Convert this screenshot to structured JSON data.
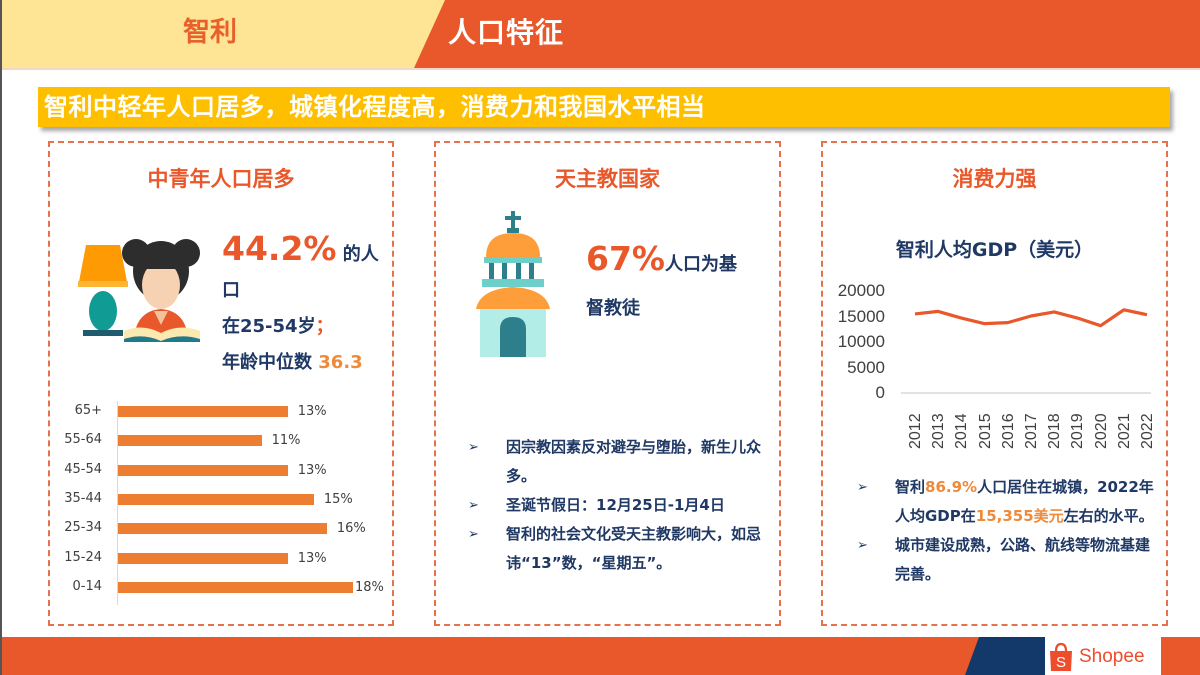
{
  "header": {
    "country": "智利",
    "topic": "人口特征"
  },
  "banner": {
    "headline": "智利中轻年人口居多，城镇化程度高，消费力和我国水平相当"
  },
  "cards": [
    {
      "title": "中青年人口居多",
      "illustration": "girl-reading-icon",
      "stat_value": "44.2%",
      "stat_suffix": " 的人",
      "stat_line2": "口",
      "stat_line3": "在25-54岁",
      "stat_line3_punct": "；",
      "median_label": "年龄中位数 ",
      "median_value": "36.3"
    },
    {
      "title": "天主教国家",
      "illustration": "church-icon",
      "stat_value": "67%",
      "stat_suffix": "人口为基",
      "stat_line2": "督教徒",
      "bullets": [
        "因宗教因素反对避孕与堕胎，新生儿众多。",
        "圣诞节假日：12月25日-1月4日",
        "智利的社会文化受天主教影响大，如忌讳“13”数，“星期五”。"
      ]
    },
    {
      "title": "消费力强",
      "chart_title": "智利人均GDP（美元）",
      "bullets": [
        {
          "parts": [
            {
              "text": "智利",
              "hl": false
            },
            {
              "text": "86.9%",
              "hl": true
            },
            {
              "text": "人口居住在城镇，2022年人均GDP在",
              "hl": false
            },
            {
              "text": "15,355美元",
              "hl": true
            },
            {
              "text": "左右的水平。",
              "hl": false
            }
          ]
        },
        {
          "parts": [
            {
              "text": "城市建设成熟，公路、航线等物流基建完善。",
              "hl": false
            }
          ]
        }
      ]
    }
  ],
  "chart_data": [
    {
      "type": "bar",
      "orientation": "horizontal",
      "title": "",
      "categories": [
        "65+",
        "55-64",
        "45-54",
        "35-44",
        "25-34",
        "15-24",
        "0-14"
      ],
      "values": [
        13,
        11,
        13,
        15,
        16,
        13,
        18
      ],
      "data_labels": [
        "13%",
        "11%",
        "13%",
        "15%",
        "16%",
        "13%",
        "18%"
      ],
      "unit": "%",
      "color": "#ed7d31",
      "grid": false,
      "legend": "none"
    },
    {
      "type": "line",
      "title": "智利人均GDP（美元）",
      "x": [
        "2012",
        "2013",
        "2014",
        "2015",
        "2016",
        "2017",
        "2018",
        "2019",
        "2020",
        "2021",
        "2022"
      ],
      "series": [
        {
          "name": "人均GDP",
          "values": [
            15500,
            16000,
            14700,
            13600,
            13800,
            15100,
            15900,
            14700,
            13200,
            16300,
            15355
          ]
        }
      ],
      "yticks": [
        "20000",
        "15000",
        "10000",
        "5000",
        "0"
      ],
      "ylim": [
        0,
        20000
      ],
      "xlabel": "",
      "ylabel": "",
      "color": "#e9582a",
      "grid": false,
      "legend": "none"
    }
  ],
  "footer": {
    "brand": "Shopee",
    "brand_icon": "shopping-bag-icon"
  },
  "colors": {
    "accent_orange": "#e9582a",
    "header_cream": "#fde595",
    "banner_yellow": "#fdbf00",
    "navy_text": "#1f3864",
    "bar_orange": "#ed7d31",
    "highlight_orange": "#ee8a3a",
    "footer_navy": "#13396b"
  }
}
